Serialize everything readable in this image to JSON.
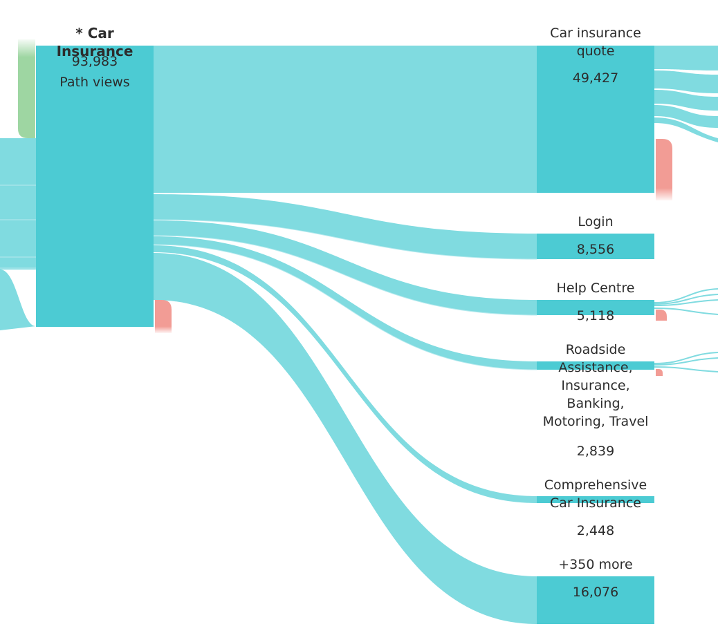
{
  "colors": {
    "node": "#4ccbd3",
    "link": "#80dbe0",
    "entry": "#9ed6a2",
    "exit": "#f29c95",
    "text": "#2c2c2c"
  },
  "focus_node": {
    "title": "* Car Insurance",
    "value": "93,983",
    "value_label": "Path views"
  },
  "next_nodes": [
    {
      "id": "car-insurance-quote",
      "label": "Car insurance quote",
      "value": "49,427"
    },
    {
      "id": "login",
      "label": "Login",
      "value": "8,556"
    },
    {
      "id": "help-centre",
      "label": "Help Centre",
      "value": "5,118"
    },
    {
      "id": "roadside",
      "label": "Roadside Assistance, Insurance, Banking, Motoring, Travel",
      "value": "2,839"
    },
    {
      "id": "comprehensive",
      "label": "Comprehensive Car Insurance",
      "value": "2,448"
    },
    {
      "id": "more",
      "label": "+350 more",
      "value": "16,076"
    }
  ],
  "chart_data": {
    "type": "sankey",
    "focus": {
      "name": "* Car Insurance",
      "value": 93983
    },
    "links": [
      {
        "source": "* Car Insurance",
        "target": "Car insurance quote",
        "value": 49427
      },
      {
        "source": "* Car Insurance",
        "target": "Login",
        "value": 8556
      },
      {
        "source": "* Car Insurance",
        "target": "Help Centre",
        "value": 5118
      },
      {
        "source": "* Car Insurance",
        "target": "Roadside Assistance, Insurance, Banking, Motoring, Travel",
        "value": 2839
      },
      {
        "source": "* Car Insurance",
        "target": "Comprehensive Car Insurance",
        "value": 2448
      },
      {
        "source": "* Car Insurance",
        "target": "+350 more",
        "value": 16076
      }
    ]
  }
}
